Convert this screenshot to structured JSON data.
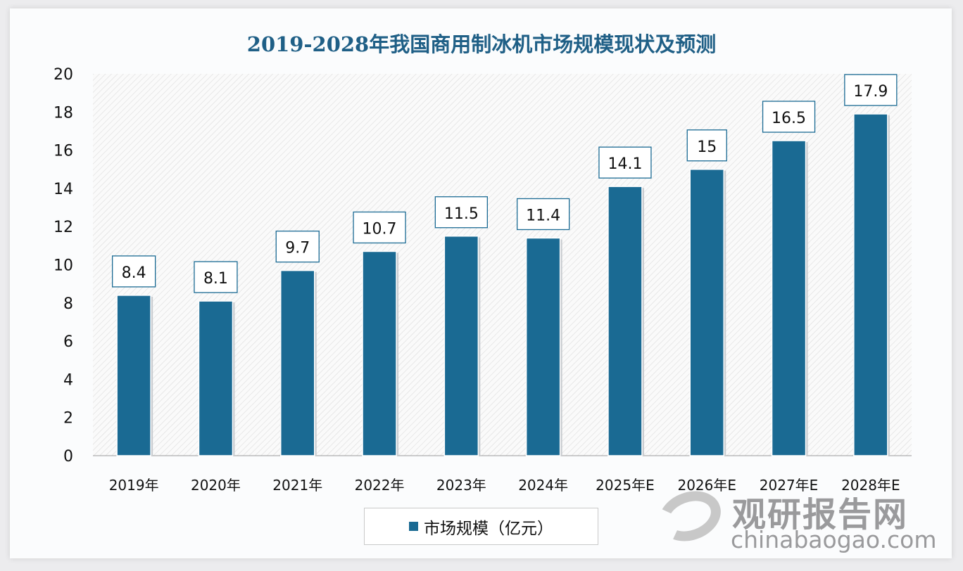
{
  "chart_data": {
    "type": "bar",
    "title": "2019-2028年我国商用制冰机市场规模现状及预测",
    "categories": [
      "2019年",
      "2020年",
      "2021年",
      "2022年",
      "2023年",
      "2024年",
      "2025年E",
      "2026年E",
      "2027年E",
      "2028年E"
    ],
    "series": [
      {
        "name": "市场规模（亿元）",
        "values": [
          8.4,
          8.1,
          9.7,
          10.7,
          11.5,
          11.4,
          14.1,
          15,
          16.5,
          17.9
        ]
      }
    ],
    "data_labels": [
      "8.4",
      "8.1",
      "9.7",
      "10.7",
      "11.5",
      "11.4",
      "14.1",
      "15",
      "16.5",
      "17.9"
    ],
    "yticks": [
      "0",
      "2",
      "4",
      "6",
      "8",
      "10",
      "12",
      "14",
      "16",
      "18",
      "20"
    ],
    "ylim": [
      0,
      20
    ],
    "xlabel": "",
    "ylabel": "",
    "legend_position": "bottom",
    "bar_color": "#1a6a93"
  },
  "watermark": {
    "cn": "观研报告网",
    "en": "chinabaogao.com"
  }
}
